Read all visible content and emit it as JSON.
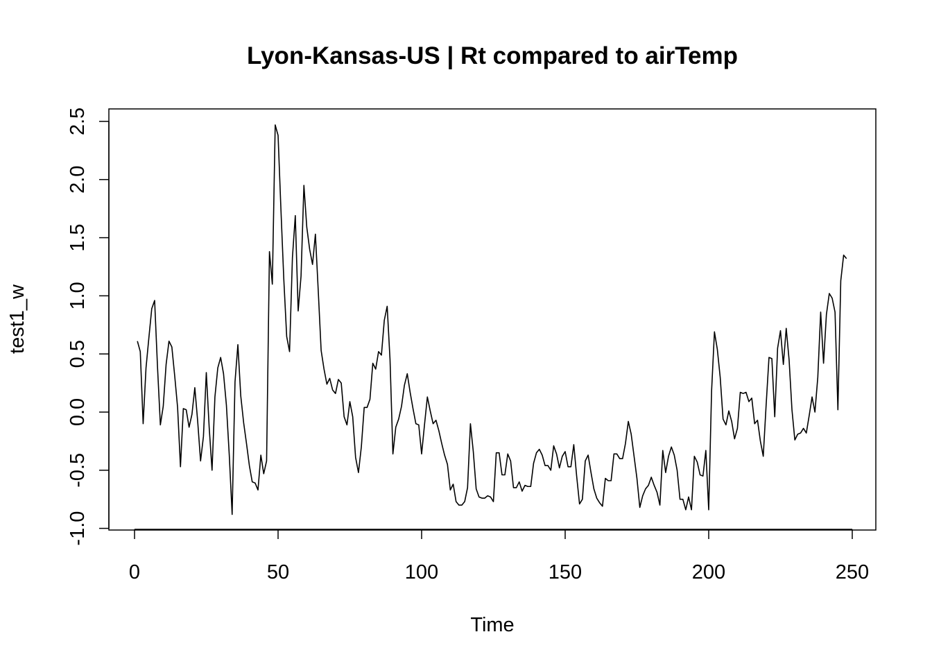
{
  "chart_data": {
    "type": "line",
    "title": "Lyon-Kansas-US | Rt compared to airTemp",
    "xlabel": "Time",
    "ylabel": "test1_w",
    "xlim": [
      0,
      250
    ],
    "ylim": [
      -1.0,
      2.5
    ],
    "x_ticks": [
      0,
      50,
      100,
      150,
      200,
      250
    ],
    "x_tick_labels": [
      "0",
      "50",
      "100",
      "150",
      "200",
      "250"
    ],
    "y_ticks": [
      -1.0,
      -0.5,
      0.0,
      0.5,
      1.0,
      1.5,
      2.0,
      2.5
    ],
    "y_tick_labels": [
      "-1.0",
      "-0.5",
      "0.0",
      "0.5",
      "1.0",
      "1.5",
      "2.0",
      "2.5"
    ],
    "grid": false,
    "series": [
      {
        "x_start": 1,
        "values": [
          0.61,
          0.52,
          -0.1,
          0.38,
          0.64,
          0.89,
          0.96,
          0.39,
          -0.11,
          0.05,
          0.41,
          0.61,
          0.56,
          0.31,
          0.04,
          -0.47,
          0.03,
          0.02,
          -0.13,
          -0.02,
          0.21,
          -0.08,
          -0.42,
          -0.21,
          0.34,
          -0.13,
          -0.5,
          0.13,
          0.38,
          0.47,
          0.33,
          0.06,
          -0.37,
          -0.88,
          0.26,
          0.58,
          0.14,
          -0.09,
          -0.27,
          -0.46,
          -0.6,
          -0.61,
          -0.67,
          -0.37,
          -0.53,
          -0.42,
          1.38,
          1.1,
          2.47,
          2.38,
          1.74,
          1.14,
          0.65,
          0.52,
          1.33,
          1.69,
          0.87,
          1.17,
          1.95,
          1.59,
          1.4,
          1.27,
          1.53,
          1.04,
          0.53,
          0.37,
          0.24,
          0.29,
          0.19,
          0.16,
          0.28,
          0.25,
          -0.04,
          -0.11,
          0.09,
          -0.04,
          -0.39,
          -0.52,
          -0.3,
          0.04,
          0.04,
          0.11,
          0.42,
          0.37,
          0.52,
          0.49,
          0.79,
          0.91,
          0.45,
          -0.36,
          -0.13,
          -0.06,
          0.05,
          0.23,
          0.33,
          0.17,
          0.03,
          -0.1,
          -0.11,
          -0.36,
          -0.11,
          0.13,
          0.01,
          -0.1,
          -0.07,
          -0.16,
          -0.27,
          -0.37,
          -0.45,
          -0.67,
          -0.62,
          -0.77,
          -0.8,
          -0.8,
          -0.77,
          -0.65,
          -0.1,
          -0.34,
          -0.66,
          -0.73,
          -0.74,
          -0.74,
          -0.72,
          -0.73,
          -0.77,
          -0.35,
          -0.35,
          -0.54,
          -0.54,
          -0.36,
          -0.42,
          -0.65,
          -0.65,
          -0.6,
          -0.68,
          -0.63,
          -0.64,
          -0.64,
          -0.44,
          -0.35,
          -0.32,
          -0.37,
          -0.46,
          -0.46,
          -0.5,
          -0.29,
          -0.36,
          -0.48,
          -0.38,
          -0.34,
          -0.47,
          -0.47,
          -0.28,
          -0.55,
          -0.79,
          -0.75,
          -0.42,
          -0.37,
          -0.52,
          -0.66,
          -0.74,
          -0.78,
          -0.81,
          -0.57,
          -0.59,
          -0.59,
          -0.36,
          -0.36,
          -0.4,
          -0.4,
          -0.27,
          -0.08,
          -0.19,
          -0.38,
          -0.57,
          -0.82,
          -0.72,
          -0.66,
          -0.63,
          -0.56,
          -0.63,
          -0.69,
          -0.8,
          -0.33,
          -0.52,
          -0.38,
          -0.3,
          -0.37,
          -0.5,
          -0.75,
          -0.75,
          -0.84,
          -0.73,
          -0.84,
          -0.38,
          -0.43,
          -0.54,
          -0.55,
          -0.33,
          -0.84,
          0.18,
          0.69,
          0.54,
          0.3,
          -0.06,
          -0.11,
          0.01,
          -0.08,
          -0.23,
          -0.14,
          0.17,
          0.16,
          0.17,
          0.09,
          0.12,
          -0.1,
          -0.07,
          -0.25,
          -0.38,
          0.06,
          0.47,
          0.46,
          -0.04,
          0.55,
          0.7,
          0.41,
          0.72,
          0.45,
          0.02,
          -0.24,
          -0.19,
          -0.18,
          -0.14,
          -0.18,
          -0.03,
          0.13,
          0.0,
          0.3,
          0.86,
          0.42,
          0.84,
          1.02,
          0.98,
          0.86,
          0.02,
          1.13,
          1.35,
          1.32
        ]
      }
    ]
  }
}
